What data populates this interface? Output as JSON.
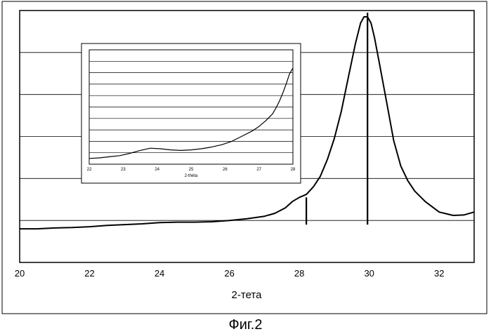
{
  "chart_data": [
    {
      "type": "line",
      "title": "",
      "xlabel": "2-тета",
      "ylabel": "",
      "xlim": [
        20,
        33
      ],
      "ylim": [
        0,
        6
      ],
      "grid": "horizontal",
      "x_ticks": [
        "20",
        "22",
        "24",
        "26",
        "28",
        "30",
        "32"
      ],
      "series": [
        {
          "x": [
            20,
            20.5,
            21,
            21.5,
            22,
            22.5,
            23,
            23.5,
            24,
            24.5,
            25,
            25.5,
            26,
            26.5,
            27,
            27.3,
            27.6,
            27.8,
            28.0,
            28.2,
            28.4,
            28.6,
            28.8,
            29.0,
            29.2,
            29.4,
            29.6,
            29.75,
            29.85,
            29.95,
            30.05,
            30.15,
            30.3,
            30.5,
            30.7,
            30.9,
            31.1,
            31.3,
            31.6,
            32.0,
            32.4,
            32.7,
            33.0
          ],
          "values": [
            0.8,
            0.8,
            0.82,
            0.83,
            0.85,
            0.88,
            0.9,
            0.92,
            0.95,
            0.96,
            0.96,
            0.97,
            1.0,
            1.04,
            1.1,
            1.17,
            1.3,
            1.45,
            1.55,
            1.62,
            1.8,
            2.05,
            2.45,
            2.95,
            3.6,
            4.4,
            5.2,
            5.7,
            5.85,
            5.85,
            5.7,
            5.35,
            4.7,
            3.8,
            2.9,
            2.3,
            1.95,
            1.7,
            1.45,
            1.2,
            1.12,
            1.13,
            1.2
          ]
        }
      ],
      "markers": [
        {
          "x": 28.2,
          "height": 1.55
        },
        {
          "x": 29.95,
          "height": 5.95
        }
      ]
    },
    {
      "type": "line",
      "title": "",
      "xlabel": "2-théta",
      "ylabel": "",
      "xlim": [
        22,
        28
      ],
      "ylim": [
        0,
        10
      ],
      "grid": "horizontal",
      "x_ticks": [
        "22",
        "23",
        "24",
        "25",
        "26",
        "27",
        "28"
      ],
      "series": [
        {
          "x": [
            22,
            22.3,
            22.6,
            22.9,
            23.2,
            23.5,
            23.8,
            24.1,
            24.4,
            24.7,
            25.0,
            25.3,
            25.6,
            25.9,
            26.2,
            26.5,
            26.8,
            27.0,
            27.2,
            27.4,
            27.5,
            27.6,
            27.7,
            27.8,
            27.9,
            28.0
          ],
          "values": [
            0.5,
            0.55,
            0.65,
            0.75,
            0.95,
            1.2,
            1.4,
            1.35,
            1.25,
            1.2,
            1.25,
            1.35,
            1.5,
            1.7,
            2.0,
            2.45,
            2.9,
            3.3,
            3.8,
            4.4,
            4.9,
            5.5,
            6.2,
            7.0,
            7.9,
            8.4
          ]
        }
      ]
    }
  ],
  "caption": "Фиг.2"
}
